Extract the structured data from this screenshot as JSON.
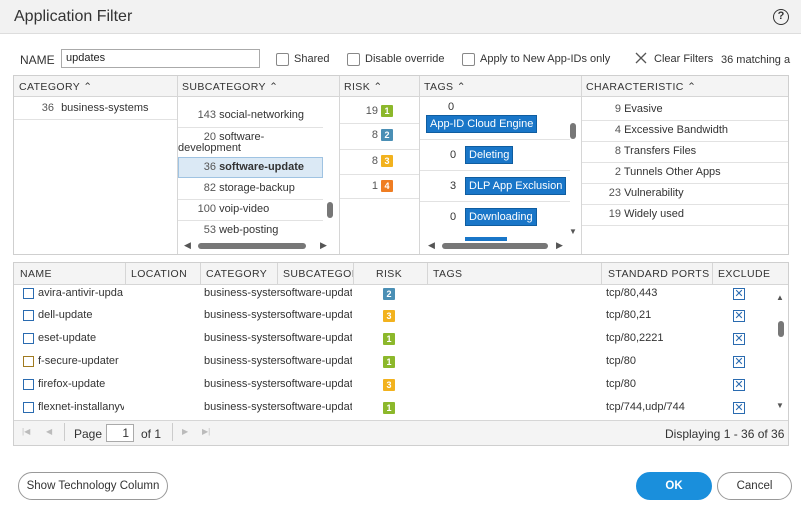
{
  "dialog": {
    "title": "Application Filter",
    "help": "?"
  },
  "filter": {
    "name_label": "NAME",
    "name_value": "updates",
    "shared": "Shared",
    "disable_override": "Disable override",
    "apply_new": "Apply to New App-IDs only",
    "clear_filters": "Clear Filters",
    "matching": "36 matching a"
  },
  "columns": {
    "category": "CATEGORY",
    "subcategory": "SUBCATEGORY",
    "risk": "RISK",
    "tags": "TAGS",
    "characteristic": "CHARACTERISTIC"
  },
  "categories": [
    {
      "count": "36",
      "label": "business-systems"
    }
  ],
  "subcategories": [
    {
      "count": "143",
      "label": "social-networking"
    },
    {
      "count": "20",
      "label": "software-",
      "label2": "development"
    },
    {
      "count": "36",
      "label": "software-update"
    },
    {
      "count": "82",
      "label": "storage-backup"
    },
    {
      "count": "100",
      "label": "voip-video"
    },
    {
      "count": "53",
      "label": "web-posting"
    }
  ],
  "risks": [
    {
      "count": "19",
      "level": "1"
    },
    {
      "count": "8",
      "level": "2"
    },
    {
      "count": "8",
      "level": "3"
    },
    {
      "count": "1",
      "level": "4"
    }
  ],
  "tags": [
    {
      "count": "0",
      "label": "App-ID Cloud Engine"
    },
    {
      "count": "0",
      "label": "Deleting"
    },
    {
      "count": "3",
      "label": "DLP App Exclusion"
    },
    {
      "count": "0",
      "label": "Downloading"
    }
  ],
  "characteristics": [
    {
      "count": "9",
      "label": "Evasive"
    },
    {
      "count": "4",
      "label": "Excessive Bandwidth"
    },
    {
      "count": "8",
      "label": "Transfers Files"
    },
    {
      "count": "2",
      "label": "Tunnels Other Apps"
    },
    {
      "count": "23",
      "label": "Vulnerability"
    },
    {
      "count": "19",
      "label": "Widely used"
    }
  ],
  "table": {
    "headers": {
      "name": "NAME",
      "location": "LOCATION",
      "category": "CATEGORY",
      "subcategory": "SUBCATEGOI",
      "risk": "RISK",
      "tags": "TAGS",
      "ports": "STANDARD PORTS",
      "exclude": "EXCLUDE"
    },
    "rows": [
      {
        "name": "avira-antivir-upda",
        "category": "business-syster",
        "subcategory": "software-updat",
        "risk": "2",
        "ports": "tcp/80,443"
      },
      {
        "name": "dell-update",
        "category": "business-syster",
        "subcategory": "software-updat",
        "risk": "3",
        "ports": "tcp/80,21"
      },
      {
        "name": "eset-update",
        "category": "business-syster",
        "subcategory": "software-updat",
        "risk": "1",
        "ports": "tcp/80,2221"
      },
      {
        "name": "f-secure-updater",
        "category": "business-syster",
        "subcategory": "software-updat",
        "risk": "1",
        "ports": "tcp/80"
      },
      {
        "name": "firefox-update",
        "category": "business-syster",
        "subcategory": "software-updat",
        "risk": "3",
        "ports": "tcp/80"
      },
      {
        "name": "flexnet-installanyv",
        "category": "business-syster",
        "subcategory": "software-updat",
        "risk": "1",
        "ports": "tcp/744,udp/744"
      }
    ]
  },
  "pager": {
    "page_label": "Page",
    "page_value": "1",
    "of": "of 1",
    "displaying": "Displaying 1 - 36 of 36"
  },
  "footer": {
    "show_tech": "Show Technology Column",
    "ok": "OK",
    "cancel": "Cancel"
  },
  "colors": {
    "risk1": "#8cb82b",
    "risk2": "#4a8fb5",
    "risk3": "#f2b21e",
    "risk4": "#ef7d22",
    "tag": "#1976c8",
    "ok": "#1a8fdc"
  }
}
